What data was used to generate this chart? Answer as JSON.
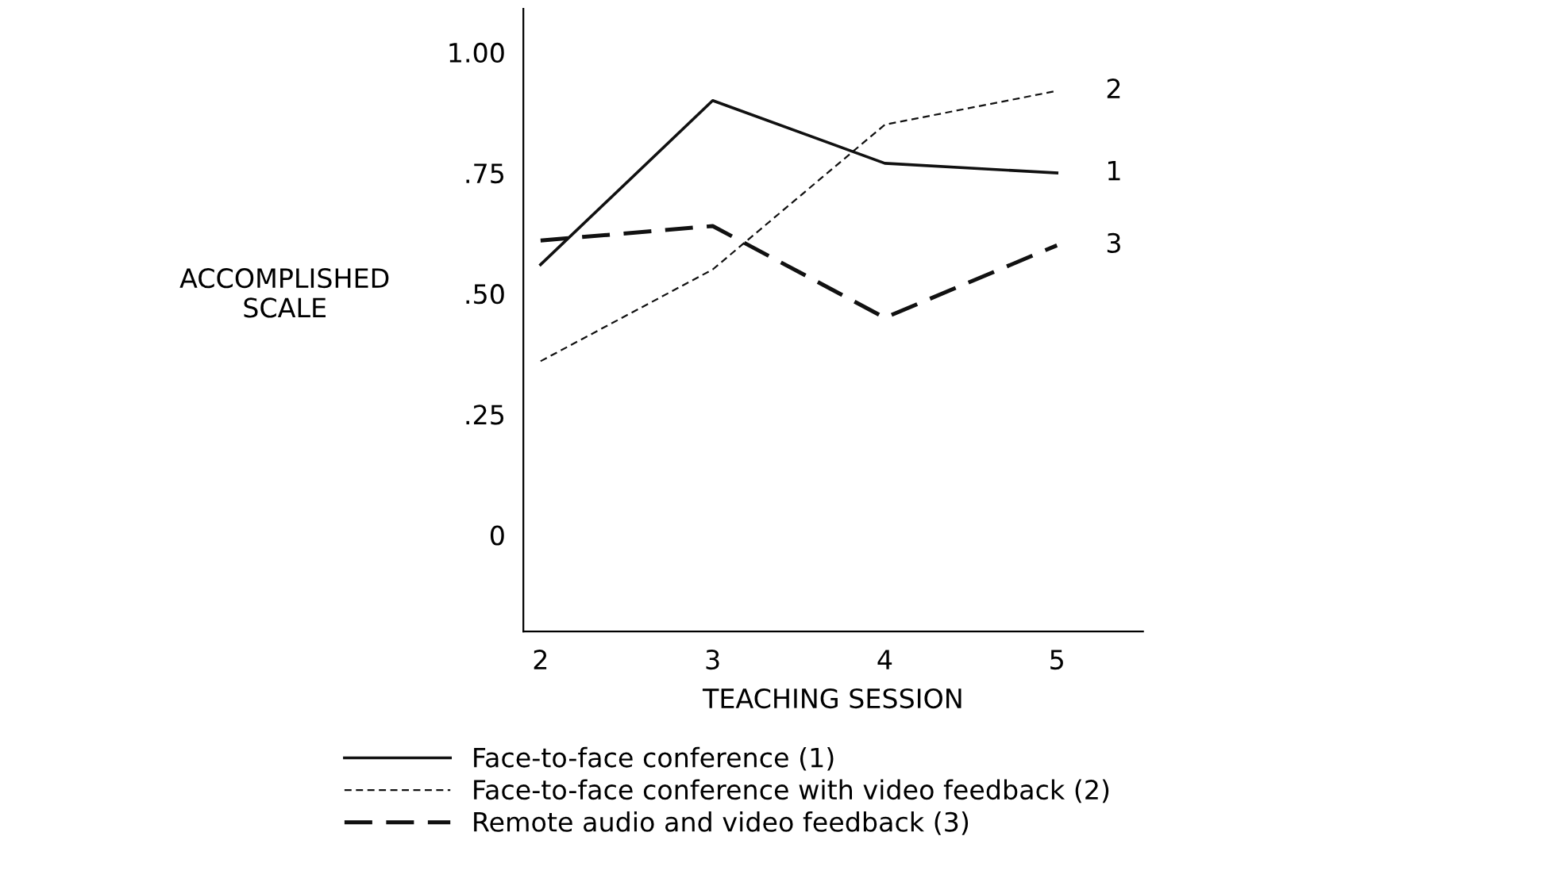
{
  "chart_data": {
    "type": "line",
    "xlabel": "TEACHING SESSION",
    "ylabel": "ACCOMPLISHED\nSCALE",
    "x": [
      2,
      3,
      4,
      5
    ],
    "xlim": [
      1.9,
      5.5
    ],
    "xticks": [
      2,
      3,
      4,
      5
    ],
    "ylim": [
      -0.2,
      1.09
    ],
    "yticks": [
      {
        "value": 0,
        "label": "0"
      },
      {
        "value": 0.25,
        "label": ".25"
      },
      {
        "value": 0.5,
        "label": ".50"
      },
      {
        "value": 0.75,
        "label": ".75"
      },
      {
        "value": 1,
        "label": "1.00"
      }
    ],
    "grid": false,
    "legend": "bottom",
    "marker": "none",
    "series": [
      {
        "name": "Face-to-face conference (1)",
        "color": "#111111",
        "line_style": "solid",
        "values": [
          0.56,
          0.9,
          0.77,
          0.75
        ]
      },
      {
        "name": "Face-to-face conference with video feedback (2)",
        "color": "#111111",
        "line_style": "dotted",
        "values": [
          0.36,
          0.55,
          0.85,
          0.92
        ]
      },
      {
        "name": "Remote audio and video feedback (3)",
        "color": "#111111",
        "line_style": "dashed",
        "values": [
          0.61,
          0.64,
          0.45,
          0.6
        ]
      }
    ],
    "annotations": [
      "1",
      "2",
      "3"
    ]
  }
}
